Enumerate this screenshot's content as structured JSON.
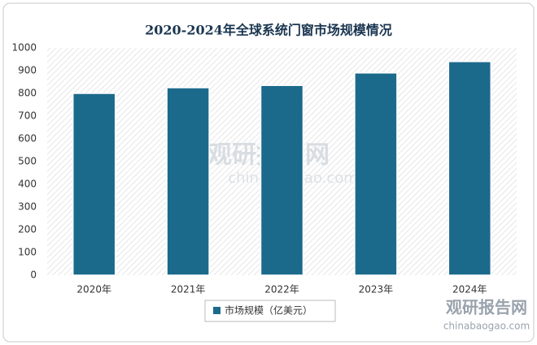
{
  "chart_data": {
    "type": "bar",
    "title": "2020-2024年全球系统门窗市场规模情况",
    "categories": [
      "2020年",
      "2021年",
      "2022年",
      "2023年",
      "2024年"
    ],
    "series": [
      {
        "name": "市场规模（亿美元）",
        "color": "#1b6a8c",
        "values": [
          800,
          825,
          835,
          890,
          940
        ]
      }
    ],
    "ylim": [
      0,
      1000
    ],
    "yticks": [
      0,
      100,
      200,
      300,
      400,
      500,
      600,
      700,
      800,
      900,
      1000
    ],
    "grid": false,
    "legend": "bottom",
    "watermark": {
      "brand": "观研报告网",
      "site": "chinabaogao.com"
    }
  }
}
